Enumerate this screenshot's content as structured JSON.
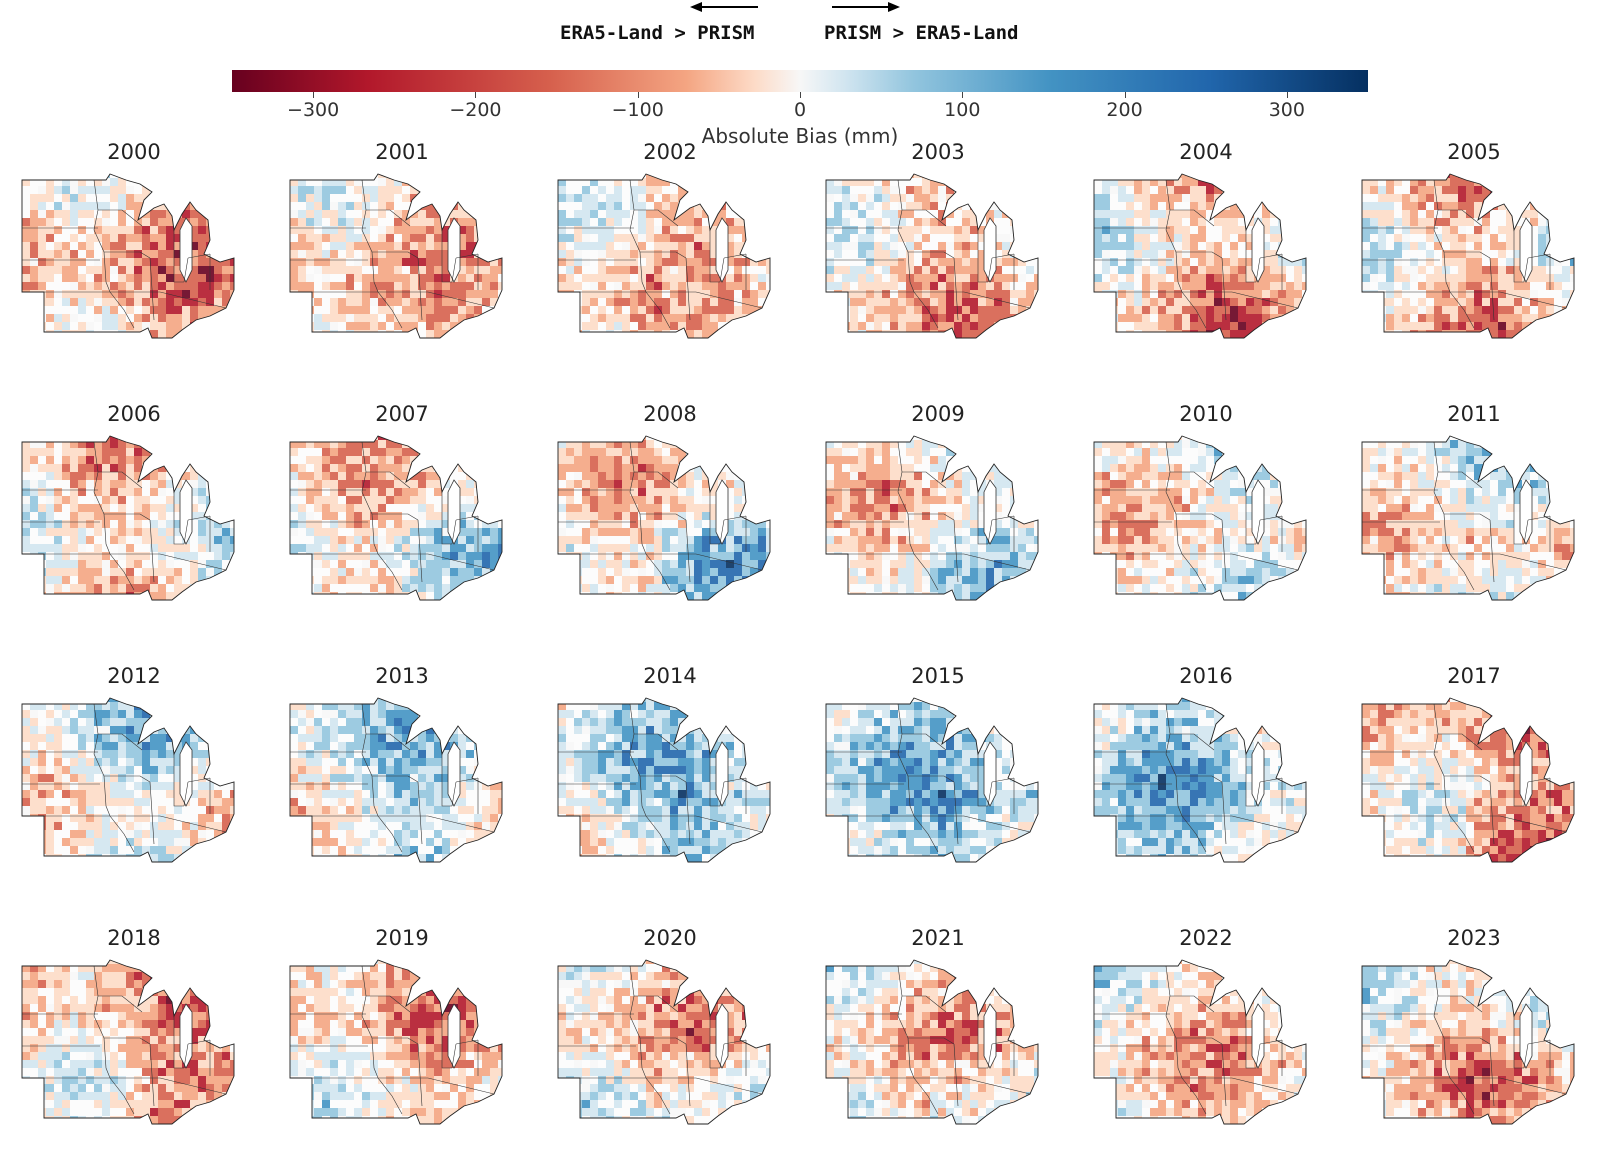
{
  "header": {
    "left_label": "ERA5-Land > PRISM",
    "right_label": "PRISM > ERA5-Land"
  },
  "colorbar": {
    "title": "Absolute Bias (mm)",
    "range": [
      -350,
      350
    ],
    "ticks": [
      "−300",
      "−200",
      "−100",
      "0",
      "100",
      "200",
      "300"
    ],
    "tick_values": [
      -300,
      -200,
      -100,
      0,
      100,
      200,
      300
    ],
    "colormap": [
      "#67001f",
      "#b2182b",
      "#d6604d",
      "#f4a582",
      "#fddbc7",
      "#f7f7f7",
      "#d1e5f0",
      "#92c5de",
      "#4393c3",
      "#2166ac",
      "#053061"
    ]
  },
  "panels": [
    {
      "year": "2000"
    },
    {
      "year": "2001"
    },
    {
      "year": "2002"
    },
    {
      "year": "2003"
    },
    {
      "year": "2004"
    },
    {
      "year": "2005"
    },
    {
      "year": "2006"
    },
    {
      "year": "2007"
    },
    {
      "year": "2008"
    },
    {
      "year": "2009"
    },
    {
      "year": "2010"
    },
    {
      "year": "2011"
    },
    {
      "year": "2012"
    },
    {
      "year": "2013"
    },
    {
      "year": "2014"
    },
    {
      "year": "2015"
    },
    {
      "year": "2016"
    },
    {
      "year": "2017"
    },
    {
      "year": "2018"
    },
    {
      "year": "2019"
    },
    {
      "year": "2020"
    },
    {
      "year": "2021"
    },
    {
      "year": "2022"
    },
    {
      "year": "2023"
    }
  ]
}
